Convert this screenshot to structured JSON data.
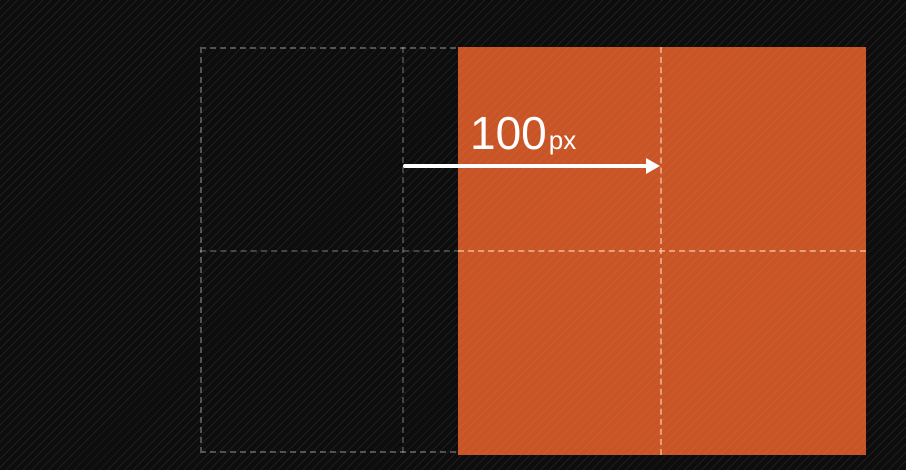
{
  "diagram": {
    "offset_value": "100",
    "offset_unit": "px",
    "colors": {
      "background": "#0d0d0d",
      "moved_box": "#c95426",
      "arrow": "#ffffff",
      "ghost_outline": "#8a8a8a"
    }
  }
}
